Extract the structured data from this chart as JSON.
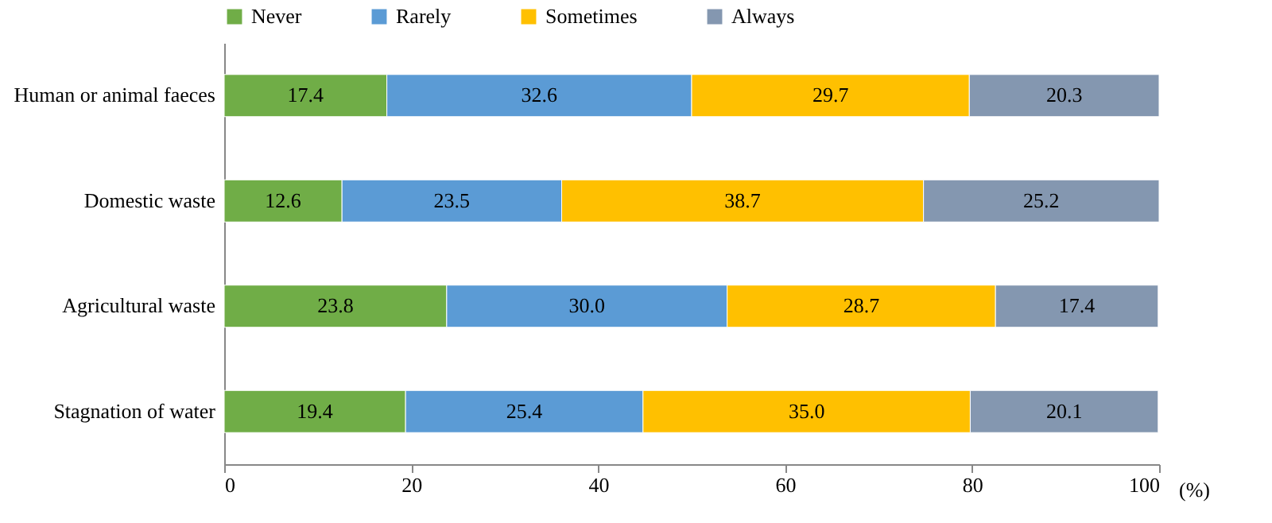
{
  "chart_data": {
    "type": "bar",
    "orientation": "horizontal",
    "stacked": true,
    "xlabel": "(%)",
    "categories": [
      "Human or animal faeces",
      "Domestic waste",
      "Agricultural waste",
      "Stagnation of water"
    ],
    "series": [
      {
        "name": "Never",
        "color": "#70ad47",
        "values": [
          17.4,
          12.6,
          23.8,
          19.4
        ],
        "value_labels": [
          "17.4",
          "12.6",
          "23.8",
          "19.4"
        ]
      },
      {
        "name": "Rarely",
        "color": "#5b9bd5",
        "values": [
          32.6,
          23.5,
          30.0,
          25.4
        ],
        "value_labels": [
          "32.6",
          "23.5",
          "30.0",
          "25.4"
        ]
      },
      {
        "name": "Sometimes",
        "color": "#ffc000",
        "values": [
          29.7,
          38.7,
          28.7,
          35.0
        ],
        "value_labels": [
          "29.7",
          "38.7",
          "28.7",
          "35.0"
        ]
      },
      {
        "name": "Always",
        "color": "#8497b0",
        "values": [
          20.3,
          25.2,
          17.4,
          20.1
        ],
        "value_labels": [
          "20.3",
          "25.2",
          "17.4",
          "20.1"
        ]
      }
    ],
    "xlim": [
      0,
      100
    ],
    "xticks": [
      0,
      20,
      40,
      60,
      80,
      100
    ],
    "grid": false,
    "legend": "top"
  }
}
